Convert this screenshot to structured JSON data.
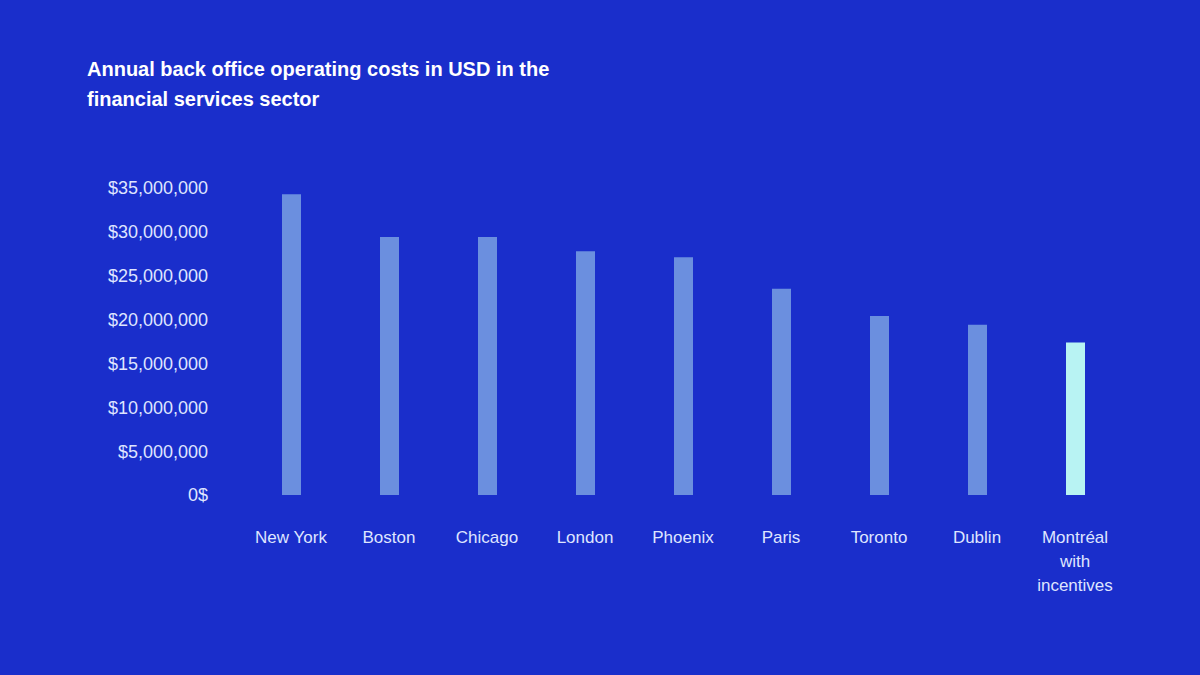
{
  "chart_data": {
    "type": "bar",
    "title": "Annual back office operating costs in USD in the financial services sector",
    "categories": [
      "New York",
      "Boston",
      "Chicago",
      "London",
      "Phoenix",
      "Paris",
      "Toronto",
      "Dublin",
      "Montréal with incentives"
    ],
    "values": [
      34300000,
      29400000,
      29400000,
      27800000,
      27100000,
      23500000,
      20400000,
      19400000,
      17400000
    ],
    "colors": [
      "#6b8fdf",
      "#6b8fdf",
      "#6b8fdf",
      "#6b8fdf",
      "#6b8fdf",
      "#6b8fdf",
      "#6b8fdf",
      "#6b8fdf",
      "#b8f3f3"
    ],
    "ylim": [
      0,
      35000000
    ],
    "yticks": [
      {
        "value": 0,
        "label": "0$"
      },
      {
        "value": 5000000,
        "label": "$5,000,000"
      },
      {
        "value": 10000000,
        "label": "$10,000,000"
      },
      {
        "value": 15000000,
        "label": "$15,000,000"
      },
      {
        "value": 20000000,
        "label": "$20,000,000"
      },
      {
        "value": 25000000,
        "label": "$25,000,000"
      },
      {
        "value": 30000000,
        "label": "$30,000,000"
      },
      {
        "value": 35000000,
        "label": "$35,000,000"
      }
    ],
    "grid": false
  }
}
